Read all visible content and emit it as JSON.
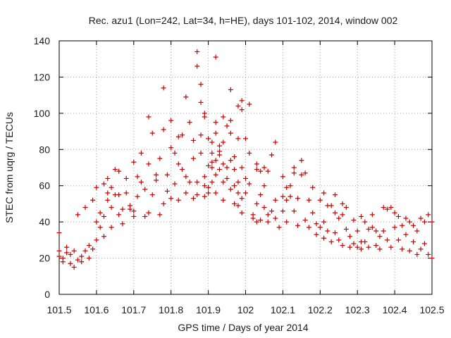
{
  "chart_data": {
    "type": "scatter",
    "title": "Rec. azu1 (Lon=242, Lat=34, h=HE), days 101-102, 2014, window 002",
    "xlabel": "GPS time / Days of year 2014",
    "ylabel": "STEC from uqrg / TECUs",
    "xlim": [
      101.5,
      102.5
    ],
    "ylim": [
      0,
      140
    ],
    "xticks": [
      101.5,
      101.6,
      101.7,
      101.8,
      101.9,
      102.0,
      102.1,
      102.2,
      102.3,
      102.4,
      102.5
    ],
    "xtick_labels": [
      "101.5",
      "101.6",
      "101.7",
      "101.8",
      "101.9",
      "102",
      "102.1",
      "102.2",
      "102.3",
      "102.4",
      "102.5"
    ],
    "yticks": [
      0,
      20,
      40,
      60,
      80,
      100,
      120,
      140
    ],
    "ytick_labels": [
      "0",
      "20",
      "40",
      "60",
      "80",
      "100",
      "120",
      "140"
    ],
    "grid": true,
    "marker": "+",
    "color": "#cc0000",
    "series": [
      {
        "points": [
          [
            101.5,
            34
          ],
          [
            101.5,
            24
          ],
          [
            101.5,
            21
          ],
          [
            101.51,
            20
          ],
          [
            101.51,
            18
          ],
          [
            101.52,
            26
          ],
          [
            101.52,
            23
          ],
          [
            101.53,
            17
          ],
          [
            101.53,
            22
          ],
          [
            101.54,
            24
          ],
          [
            101.54,
            15
          ],
          [
            101.55,
            19
          ],
          [
            101.55,
            44
          ],
          [
            101.56,
            21
          ],
          [
            101.56,
            18
          ],
          [
            101.57,
            24
          ],
          [
            101.57,
            48
          ],
          [
            101.58,
            20
          ],
          [
            101.58,
            27
          ],
          [
            101.59,
            25
          ],
          [
            101.59,
            52
          ],
          [
            101.6,
            30
          ],
          [
            101.6,
            40
          ],
          [
            101.6,
            59
          ],
          [
            101.61,
            37
          ],
          [
            101.61,
            45
          ],
          [
            101.62,
            32
          ],
          [
            101.62,
            43
          ],
          [
            101.62,
            61
          ],
          [
            101.63,
            52
          ],
          [
            101.63,
            56
          ],
          [
            101.63,
            64
          ],
          [
            101.64,
            37
          ],
          [
            101.64,
            48
          ],
          [
            101.64,
            59
          ],
          [
            101.65,
            55
          ],
          [
            101.65,
            69
          ],
          [
            101.66,
            44
          ],
          [
            101.66,
            55
          ],
          [
            101.66,
            68
          ],
          [
            101.67,
            47
          ],
          [
            101.67,
            39
          ],
          [
            101.68,
            56
          ],
          [
            101.68,
            64
          ],
          [
            101.69,
            49
          ],
          [
            101.69,
            47
          ],
          [
            101.7,
            73
          ],
          [
            101.7,
            46
          ],
          [
            101.7,
            43
          ],
          [
            101.71,
            65
          ],
          [
            101.71,
            54
          ],
          [
            101.72,
            78
          ],
          [
            101.72,
            62
          ],
          [
            101.73,
            43
          ],
          [
            101.73,
            58
          ],
          [
            101.74,
            98
          ],
          [
            101.74,
            72
          ],
          [
            101.74,
            45
          ],
          [
            101.75,
            55
          ],
          [
            101.75,
            89
          ],
          [
            101.76,
            66
          ],
          [
            101.76,
            63
          ],
          [
            101.77,
            75
          ],
          [
            101.77,
            44
          ],
          [
            101.78,
            91
          ],
          [
            101.78,
            114
          ],
          [
            101.78,
            50
          ],
          [
            101.79,
            66
          ],
          [
            101.79,
            57
          ],
          [
            101.8,
            81
          ],
          [
            101.8,
            96
          ],
          [
            101.8,
            53
          ],
          [
            101.81,
            78
          ],
          [
            101.81,
            61
          ],
          [
            101.82,
            87
          ],
          [
            101.82,
            72
          ],
          [
            101.82,
            52
          ],
          [
            101.83,
            69
          ],
          [
            101.83,
            88
          ],
          [
            101.84,
            65
          ],
          [
            101.84,
            109
          ],
          [
            101.84,
            56
          ],
          [
            101.85,
            62
          ],
          [
            101.85,
            95
          ],
          [
            101.86,
            75
          ],
          [
            101.86,
            53
          ],
          [
            101.86,
            85
          ],
          [
            101.87,
            62
          ],
          [
            101.87,
            134
          ],
          [
            101.87,
            126
          ],
          [
            101.87,
            55
          ],
          [
            101.88,
            116
          ],
          [
            101.88,
            106
          ],
          [
            101.88,
            88
          ],
          [
            101.88,
            78
          ],
          [
            101.89,
            65
          ],
          [
            101.89,
            60
          ],
          [
            101.89,
            54
          ],
          [
            101.89,
            100
          ],
          [
            101.89,
            98
          ],
          [
            101.9,
            86
          ],
          [
            101.9,
            71
          ],
          [
            101.9,
            59
          ],
          [
            101.9,
            56
          ],
          [
            101.91,
            84
          ],
          [
            101.91,
            78
          ],
          [
            101.91,
            73
          ],
          [
            101.91,
            70
          ],
          [
            101.91,
            62
          ],
          [
            101.92,
            131
          ],
          [
            101.92,
            95
          ],
          [
            101.92,
            89
          ],
          [
            101.92,
            74
          ],
          [
            101.92,
            66
          ],
          [
            101.92,
            56
          ],
          [
            101.93,
            82
          ],
          [
            101.93,
            79
          ],
          [
            101.93,
            77
          ],
          [
            101.93,
            69
          ],
          [
            101.94,
            98
          ],
          [
            101.94,
            84
          ],
          [
            101.94,
            72
          ],
          [
            101.94,
            62
          ],
          [
            101.94,
            52
          ],
          [
            101.95,
            93
          ],
          [
            101.95,
            70
          ],
          [
            101.95,
            64
          ],
          [
            101.96,
            113
          ],
          [
            101.96,
            96
          ],
          [
            101.96,
            89
          ],
          [
            101.96,
            74
          ],
          [
            101.96,
            58
          ],
          [
            101.97,
            76
          ],
          [
            101.97,
            69
          ],
          [
            101.97,
            60
          ],
          [
            101.97,
            50
          ],
          [
            101.98,
            104
          ],
          [
            101.98,
            86
          ],
          [
            101.98,
            62
          ],
          [
            101.98,
            56
          ],
          [
            101.98,
            49
          ],
          [
            101.99,
            107
          ],
          [
            101.99,
            102
          ],
          [
            101.99,
            70
          ],
          [
            101.99,
            53
          ],
          [
            101.99,
            45
          ],
          [
            102.0,
            86
          ],
          [
            102.0,
            64
          ],
          [
            102.0,
            56
          ],
          [
            102.01,
            105
          ],
          [
            102.01,
            78
          ],
          [
            102.01,
            61
          ],
          [
            102.02,
            44
          ],
          [
            102.02,
            42
          ],
          [
            102.03,
            72
          ],
          [
            102.03,
            69
          ],
          [
            102.03,
            50
          ],
          [
            102.03,
            40
          ],
          [
            102.04,
            68
          ],
          [
            102.04,
            55
          ],
          [
            102.04,
            41
          ],
          [
            102.05,
            70
          ],
          [
            102.05,
            60
          ],
          [
            102.05,
            48
          ],
          [
            102.06,
            68
          ],
          [
            102.06,
            44
          ],
          [
            102.06,
            40
          ],
          [
            102.07,
            77
          ],
          [
            102.07,
            46
          ],
          [
            102.08,
            84
          ],
          [
            102.08,
            52
          ],
          [
            102.08,
            42
          ],
          [
            102.09,
            37
          ],
          [
            102.1,
            65
          ],
          [
            102.1,
            54
          ],
          [
            102.1,
            46
          ],
          [
            102.11,
            59
          ],
          [
            102.11,
            52
          ],
          [
            102.11,
            40
          ],
          [
            102.12,
            60
          ],
          [
            102.12,
            54
          ],
          [
            102.13,
            70
          ],
          [
            102.13,
            67
          ],
          [
            102.13,
            46
          ],
          [
            102.14,
            53
          ],
          [
            102.14,
            38
          ],
          [
            102.15,
            74
          ],
          [
            102.15,
            66
          ],
          [
            102.16,
            67
          ],
          [
            102.16,
            41
          ],
          [
            102.17,
            52
          ],
          [
            102.17,
            37
          ],
          [
            102.18,
            59
          ],
          [
            102.18,
            45
          ],
          [
            102.19,
            39
          ],
          [
            102.19,
            33
          ],
          [
            102.2,
            52
          ],
          [
            102.2,
            37
          ],
          [
            102.21,
            56
          ],
          [
            102.21,
            40
          ],
          [
            102.21,
            31
          ],
          [
            102.22,
            49
          ],
          [
            102.22,
            35
          ],
          [
            102.23,
            49
          ],
          [
            102.23,
            29
          ],
          [
            102.24,
            55
          ],
          [
            102.24,
            45
          ],
          [
            102.24,
            34
          ],
          [
            102.25,
            42
          ],
          [
            102.25,
            30
          ],
          [
            102.26,
            50
          ],
          [
            102.26,
            44
          ],
          [
            102.26,
            27
          ],
          [
            102.27,
            48
          ],
          [
            102.27,
            36
          ],
          [
            102.28,
            32
          ],
          [
            102.28,
            26
          ],
          [
            102.29,
            41
          ],
          [
            102.29,
            28
          ],
          [
            102.3,
            35
          ],
          [
            102.3,
            26
          ],
          [
            102.31,
            43
          ],
          [
            102.31,
            29
          ],
          [
            102.31,
            25
          ],
          [
            102.32,
            40
          ],
          [
            102.32,
            29
          ],
          [
            102.33,
            36
          ],
          [
            102.33,
            26
          ],
          [
            102.34,
            44
          ],
          [
            102.34,
            37
          ],
          [
            102.35,
            35
          ],
          [
            102.35,
            27
          ],
          [
            102.36,
            32
          ],
          [
            102.36,
            25
          ],
          [
            102.37,
            48
          ],
          [
            102.37,
            35
          ],
          [
            102.38,
            47
          ],
          [
            102.38,
            30
          ],
          [
            102.39,
            48
          ],
          [
            102.39,
            26
          ],
          [
            102.4,
            45
          ],
          [
            102.4,
            37
          ],
          [
            102.41,
            43
          ],
          [
            102.41,
            30
          ],
          [
            102.42,
            38
          ],
          [
            102.42,
            25
          ],
          [
            102.43,
            42
          ],
          [
            102.43,
            33
          ],
          [
            102.44,
            40
          ],
          [
            102.44,
            24
          ],
          [
            102.45,
            38
          ],
          [
            102.45,
            29
          ],
          [
            102.46,
            35
          ],
          [
            102.46,
            22
          ],
          [
            102.47,
            42
          ],
          [
            102.47,
            25
          ],
          [
            102.48,
            40
          ],
          [
            102.48,
            28
          ],
          [
            102.49,
            44
          ],
          [
            102.49,
            22
          ],
          [
            102.5,
            40
          ],
          [
            102.5,
            20
          ]
        ]
      }
    ]
  }
}
